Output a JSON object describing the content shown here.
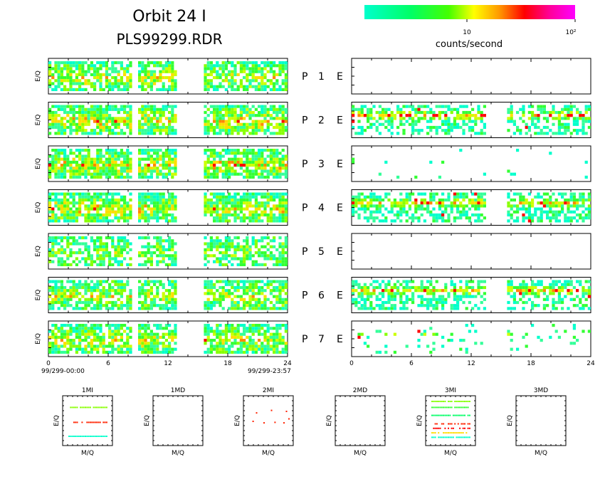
{
  "header": {
    "title_line1": "Orbit 24 I",
    "title_line2": "PLS99299.RDR"
  },
  "colorbar": {
    "label": "counts/second",
    "tick_10": "10",
    "tick_100": "10²",
    "colors": [
      "#00ffcc",
      "#00ff00",
      "#ffff00",
      "#ff8800",
      "#ff0000",
      "#ff00ff"
    ]
  },
  "time_axis": {
    "ticks": [
      "0",
      "6",
      "12",
      "18",
      "24"
    ],
    "start_label": "99/299-00:00",
    "end_label": "99/299-23:57"
  },
  "chart_data": {
    "type": "heatmap",
    "x_range_hours": [
      0,
      24
    ],
    "gap_hours": [
      14.8,
      15.7
    ],
    "left_gaps_hours": [
      [
        8.5,
        8.9
      ],
      [
        13.0,
        15.5
      ]
    ],
    "left_ylabel": "E/Q",
    "rows": [
      {
        "label_p": "P",
        "num": "1",
        "label_e": "E",
        "left_density": 0.72,
        "left_level": 0.32,
        "right_density": 0.0,
        "right_level": 0.0
      },
      {
        "label_p": "P",
        "num": "2",
        "label_e": "E",
        "left_density": 0.78,
        "left_level": 0.38,
        "right_density": 0.55,
        "right_level": 0.45
      },
      {
        "label_p": "P",
        "num": "3",
        "label_e": "E",
        "left_density": 0.8,
        "left_level": 0.38,
        "right_density": 0.02,
        "right_level": 0.05
      },
      {
        "label_p": "P",
        "num": "4",
        "label_e": "E",
        "left_density": 0.78,
        "left_level": 0.36,
        "right_density": 0.62,
        "right_level": 0.4
      },
      {
        "label_p": "P",
        "num": "5",
        "label_e": "E",
        "left_density": 0.62,
        "left_level": 0.22,
        "right_density": 0.0,
        "right_level": 0.0
      },
      {
        "label_p": "P",
        "num": "6",
        "label_e": "E",
        "left_density": 0.72,
        "left_level": 0.3,
        "right_density": 0.55,
        "right_level": 0.38
      },
      {
        "label_p": "P",
        "num": "7",
        "label_e": "E",
        "left_density": 0.75,
        "left_level": 0.34,
        "right_density": 0.1,
        "right_level": 0.08
      }
    ],
    "mq_panels": [
      {
        "title": "1MI",
        "xlabel": "M/Q",
        "ylabel": "E/Q",
        "lines": [
          {
            "level": 0.4,
            "offset": 0.2
          },
          {
            "level": 0.85,
            "offset": 0.5
          },
          {
            "level": 0.05,
            "offset": 0.75
          }
        ]
      },
      {
        "title": "1MD",
        "xlabel": "M/Q",
        "ylabel": "",
        "lines": []
      },
      {
        "title": "2MI",
        "xlabel": "M/Q",
        "ylabel": "E/Q",
        "scatter": true
      },
      {
        "title": "2MD",
        "xlabel": "M/Q",
        "ylabel": "",
        "lines": []
      },
      {
        "title": "3MI",
        "xlabel": "M/Q",
        "ylabel": "E/Q",
        "dense": true
      },
      {
        "title": "3MD",
        "xlabel": "M/Q",
        "ylabel": "",
        "lines": []
      }
    ]
  }
}
